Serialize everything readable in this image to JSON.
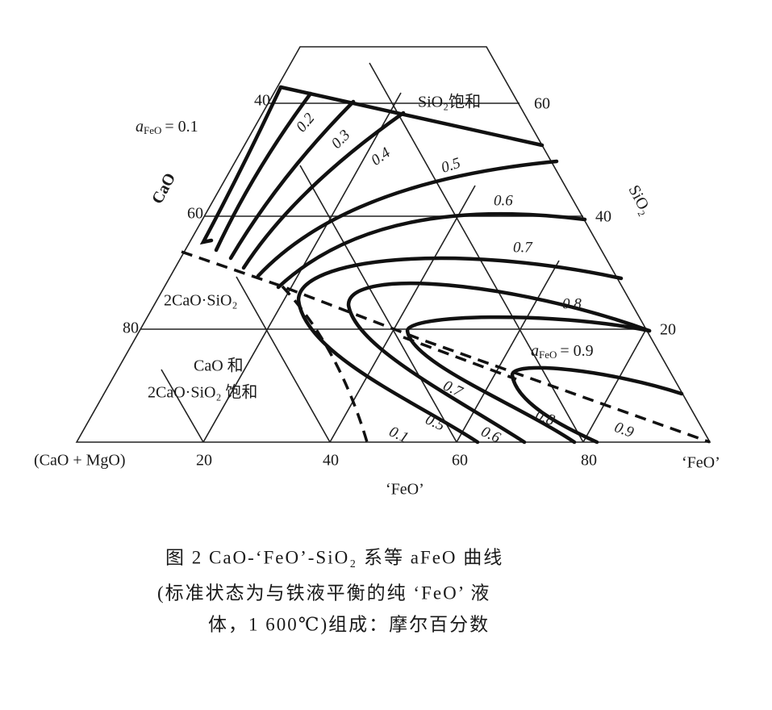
{
  "diagram": {
    "axes": {
      "left": {
        "name": "CaO",
        "ticks": [
          "40",
          "60",
          "80"
        ]
      },
      "right": {
        "name": "SiO₂",
        "ticks": [
          "60",
          "40",
          "20"
        ]
      },
      "bottom": {
        "name": "‘FeO’",
        "ticks": [
          "(CaO + MgO)",
          "20",
          "40",
          "60",
          "80",
          "‘FeO’"
        ]
      }
    },
    "annotations": {
      "a01": {
        "symbol": "a",
        "sub": "FeO",
        "text": "= 0.1"
      },
      "a09": {
        "symbol": "a",
        "sub": "FeO",
        "text": "= 0.9"
      },
      "sio2_sat": "SiO₂饱和",
      "c2s": "2CaO·SiO₂",
      "cao_and": "CaO 和",
      "c2s_sat": "2CaO·SiO₂ 饱和"
    },
    "curve_labels": [
      "0.2",
      "0.3",
      "0.4",
      "0.5",
      "0.6",
      "0.7",
      "0.8",
      "0.7",
      "0.8",
      "0.9",
      "0.1",
      "0.5",
      "0.6"
    ],
    "caption": [
      "图 2   CaO-‘FeO’-SiO₂ 系等 aFeO 曲线",
      "(标准状态为与铁液平衡的纯 ‘FeO’ 液",
      "体，1 600℃)组成：摩尔百分数"
    ]
  }
}
